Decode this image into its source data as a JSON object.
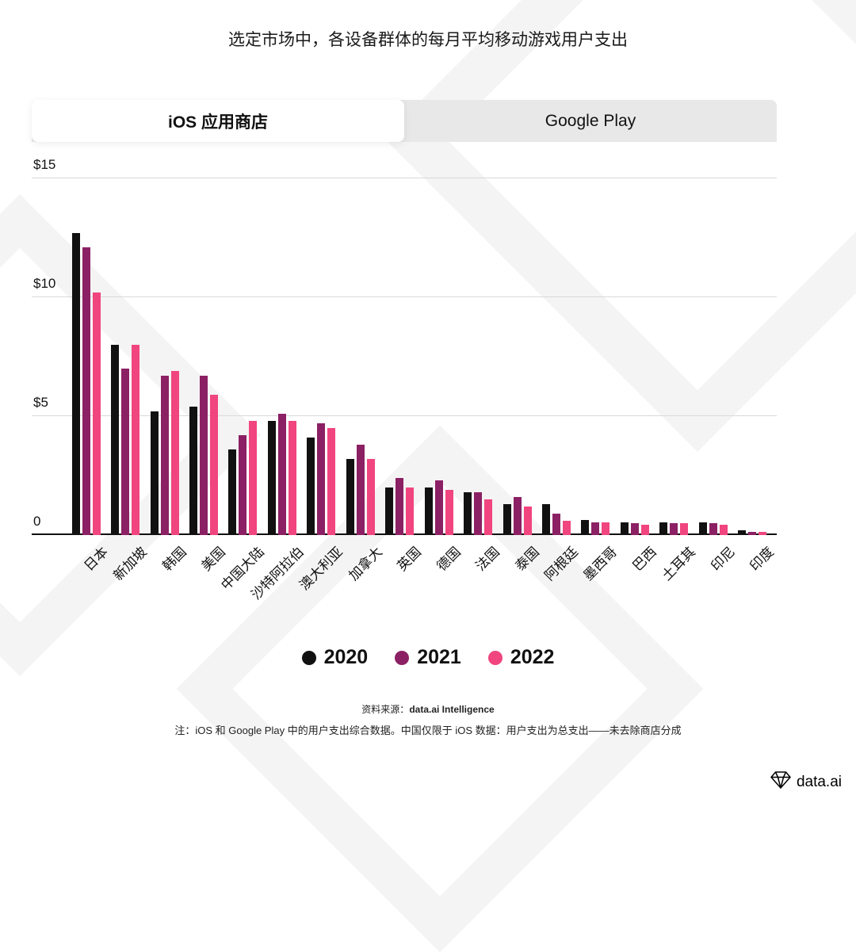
{
  "page": {
    "title": "选定市场中，各设备群体的每月平均移动游戏用户支出",
    "tabs": [
      {
        "label": "iOS 应用商店",
        "active": true
      },
      {
        "label": "Google Play",
        "active": false
      }
    ],
    "source_prefix": "资料来源：",
    "source_name": "data.ai Intelligence",
    "note": "注：iOS 和 Google Play 中的用户支出综合数据。中国仅限于 iOS 数据：用户支出为总支出——未去除商店分成",
    "brand": "data.ai"
  },
  "chart_data": {
    "type": "bar",
    "title": "选定市场中，各设备群体的每月平均移动游戏用户支出",
    "categories": [
      "日本",
      "新加坡",
      "韩国",
      "美国",
      "中国大陆",
      "沙特阿拉伯",
      "澳大利亚",
      "加拿大",
      "英国",
      "德国",
      "法国",
      "泰国",
      "阿根廷",
      "墨西哥",
      "巴西",
      "土耳其",
      "印尼",
      "印度"
    ],
    "series": [
      {
        "name": "2020",
        "color": "#111111",
        "values": [
          12.7,
          8.0,
          5.2,
          5.4,
          3.6,
          4.8,
          4.1,
          3.2,
          2.0,
          2.0,
          1.8,
          1.3,
          1.3,
          0.65,
          0.55,
          0.55,
          0.55,
          0.2
        ]
      },
      {
        "name": "2021",
        "color": "#8c2064",
        "values": [
          12.1,
          7.0,
          6.7,
          6.7,
          4.2,
          5.1,
          4.7,
          3.8,
          2.4,
          2.3,
          1.8,
          1.6,
          0.9,
          0.55,
          0.5,
          0.5,
          0.5,
          0.12
        ]
      },
      {
        "name": "2022",
        "color": "#f0457e",
        "values": [
          10.2,
          8.0,
          6.9,
          5.9,
          4.8,
          4.8,
          4.5,
          3.2,
          2.0,
          1.9,
          1.5,
          1.2,
          0.6,
          0.55,
          0.45,
          0.5,
          0.45,
          0.12
        ]
      }
    ],
    "xlabel": "",
    "ylabel": "",
    "ylim": [
      0,
      15
    ],
    "yticks": [
      {
        "value": 0,
        "label": "0"
      },
      {
        "value": 5,
        "label": "$5"
      },
      {
        "value": 10,
        "label": "$10"
      },
      {
        "value": 15,
        "label": "$15"
      }
    ],
    "grid": true,
    "legend_position": "bottom"
  }
}
